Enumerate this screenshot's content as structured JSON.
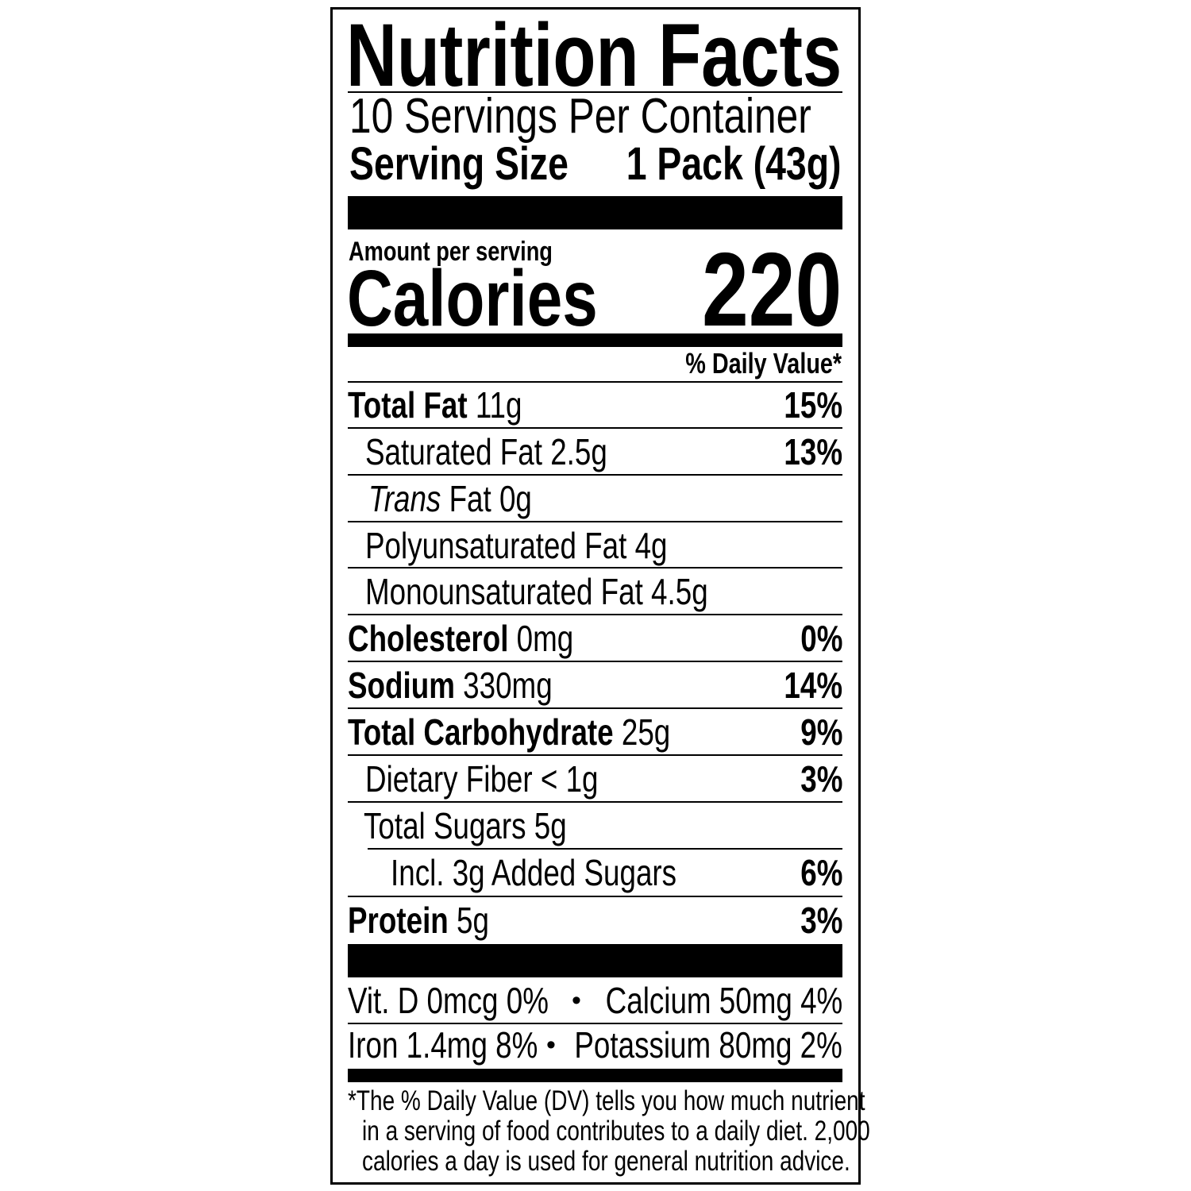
{
  "title": "Nutrition Facts",
  "servings_per_container": "10 Servings Per Container",
  "serving_size": {
    "label": "Serving Size",
    "value": "1 Pack (43g)"
  },
  "amount_per_serving": "Amount per serving",
  "calories": {
    "label": "Calories",
    "value": "220"
  },
  "daily_value_header": "% Daily Value*",
  "nutrients": [
    {
      "label": "Total Fat",
      "amount": "11g",
      "dv": "15%"
    },
    {
      "label": "Saturated Fat 2.5g",
      "dv": "13%"
    },
    {
      "label_italic": "Trans",
      "label": "Fat 0g"
    },
    {
      "label": "Polyunsaturated Fat 4g"
    },
    {
      "label": "Monounsaturated Fat 4.5g"
    },
    {
      "label": "Cholesterol",
      "amount": "0mg",
      "dv": "0%"
    },
    {
      "label": "Sodium",
      "amount": "330mg",
      "dv": "14%"
    },
    {
      "label": "Total Carbohydrate",
      "amount": "25g",
      "dv": "9%"
    },
    {
      "label": "Dietary Fiber < 1g",
      "dv": "3%"
    },
    {
      "label": "Total Sugars 5g"
    },
    {
      "label": "Incl. 3g Added Sugars",
      "dv": "6%"
    },
    {
      "label": "Protein",
      "amount": "5g",
      "dv": "3%"
    }
  ],
  "vitamins": [
    {
      "left": "Vit. D 0mcg 0%",
      "bullet": "•",
      "right": "Calcium 50mg 4%"
    },
    {
      "left": "Iron 1.4mg 8%",
      "bullet": "•",
      "right": "Potassium 80mg 2%"
    }
  ],
  "footnote": [
    "*The % Daily Value (DV) tells you how much nutrient",
    "in a serving of food contributes to a daily diet. 2,000",
    "calories a day is used for general nutrition advice."
  ]
}
